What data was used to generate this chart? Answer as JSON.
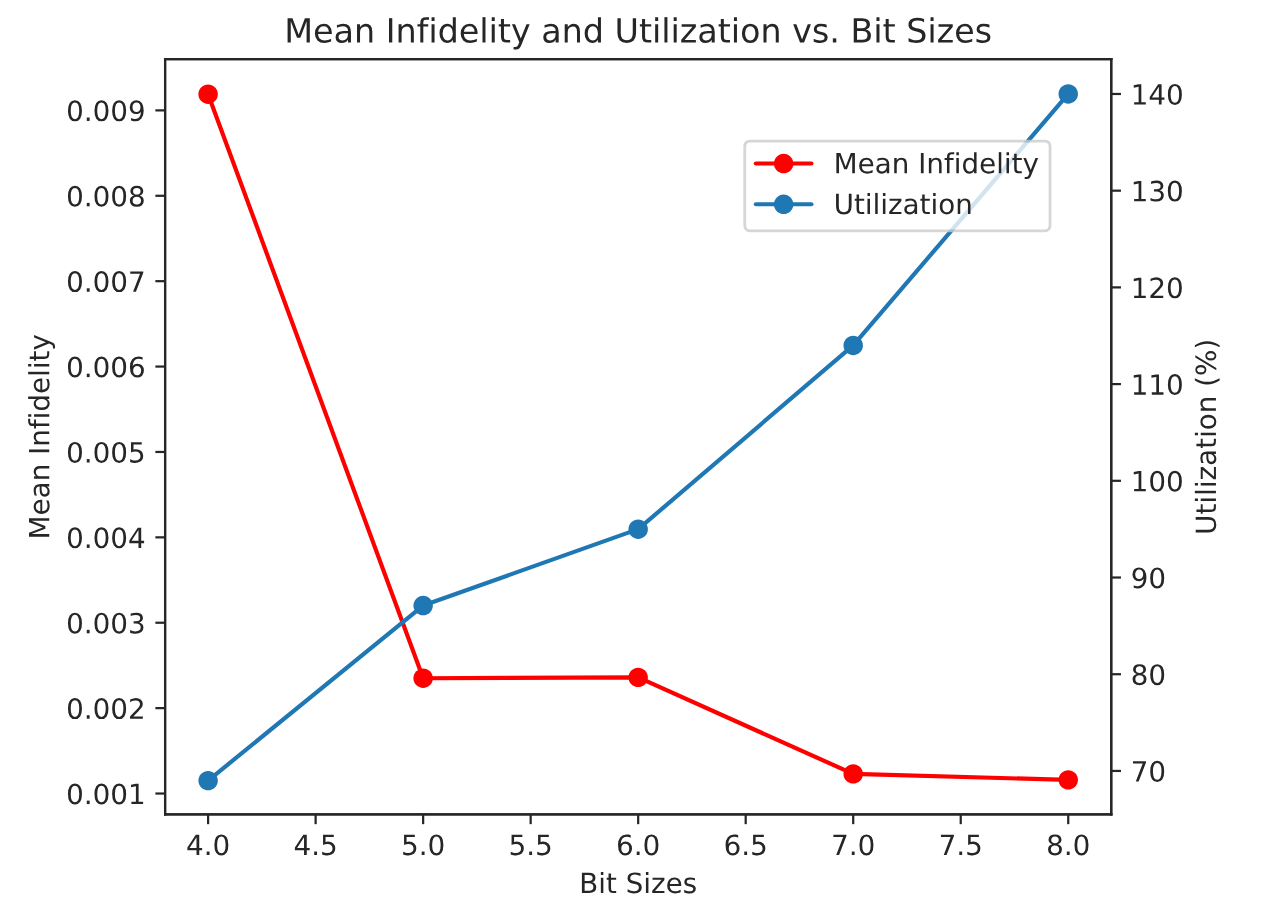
{
  "chart_data": {
    "type": "line",
    "title": "Mean Infidelity and Utilization vs. Bit Sizes",
    "xlabel": "Bit Sizes",
    "ylabel": "Mean Infidelity",
    "y2label": "Utilization (%)",
    "x": [
      4.0,
      5.0,
      6.0,
      7.0,
      8.0
    ],
    "series": [
      {
        "name": "Mean Infidelity",
        "color": "#ff0000",
        "values": [
          0.00919,
          0.00235,
          0.00236,
          0.00123,
          0.00116
        ]
      },
      {
        "name": "Utilization",
        "color": "#1f77b4",
        "axis": "y2",
        "values": [
          69.0,
          87.1,
          95.0,
          114.0,
          140.0
        ]
      }
    ],
    "xlim": [
      3.8,
      8.2
    ],
    "xticks": [
      {
        "value": 4.0,
        "label": "4.0"
      },
      {
        "value": 4.5,
        "label": "4.5"
      },
      {
        "value": 5.0,
        "label": "5.0"
      },
      {
        "value": 5.5,
        "label": "5.5"
      },
      {
        "value": 6.0,
        "label": "6.0"
      },
      {
        "value": 6.5,
        "label": "6.5"
      },
      {
        "value": 7.0,
        "label": "7.0"
      },
      {
        "value": 7.5,
        "label": "7.5"
      },
      {
        "value": 8.0,
        "label": "8.0"
      }
    ],
    "ylim": [
      0.000755,
      0.0096
    ],
    "yticks": [
      0.001,
      0.002,
      0.003,
      0.004,
      0.005,
      0.006,
      0.007,
      0.008,
      0.009
    ],
    "y2lim": [
      65.5,
      143.6
    ],
    "y2ticks": [
      70,
      80,
      90,
      100,
      110,
      120,
      130,
      140
    ],
    "marker": "circle",
    "line_style": "solid",
    "legend": "top right",
    "grid": false
  }
}
